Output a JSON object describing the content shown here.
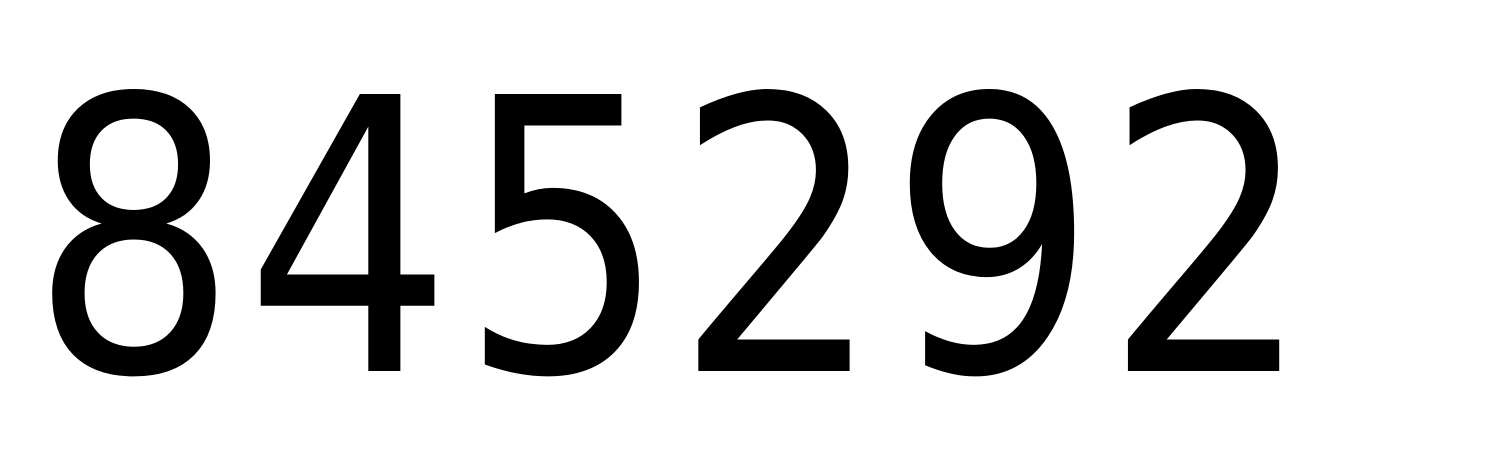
{
  "display": {
    "number": "845292",
    "text_color": "#000000",
    "background_color": "#ffffff"
  }
}
